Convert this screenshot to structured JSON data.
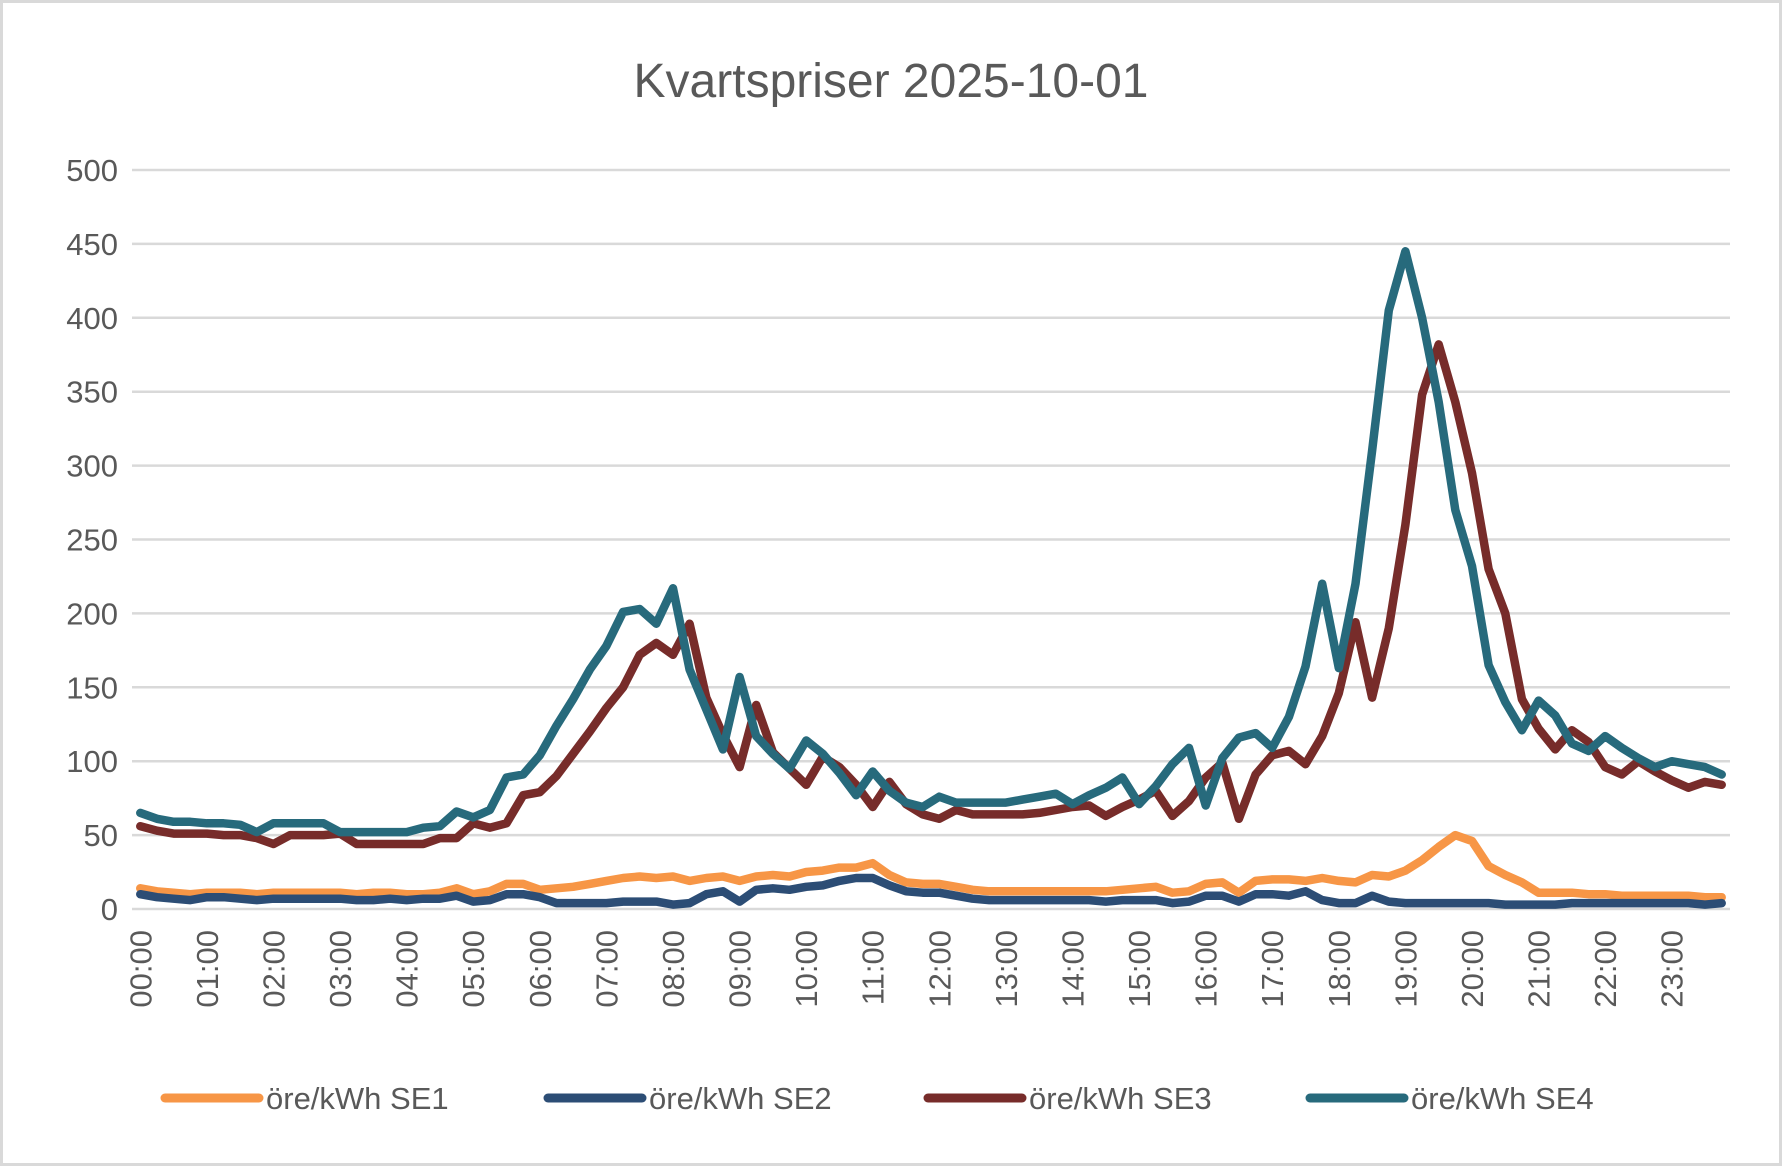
{
  "chart_data": {
    "type": "line",
    "title": "Kvartspriser 2025-10-01",
    "xlabel": "",
    "ylabel": "",
    "ylim": [
      0,
      500
    ],
    "yticks": [
      "0",
      "50",
      "100",
      "150",
      "200",
      "250",
      "300",
      "350",
      "400",
      "450",
      "500"
    ],
    "ytick_values": [
      0,
      50,
      100,
      150,
      200,
      250,
      300,
      350,
      400,
      450,
      500
    ],
    "xtick_labels": [
      "00:00",
      "01:00",
      "02:00",
      "03:00",
      "04:00",
      "05:00",
      "06:00",
      "07:00",
      "08:00",
      "09:00",
      "10:00",
      "11:00",
      "12:00",
      "13:00",
      "14:00",
      "15:00",
      "16:00",
      "17:00",
      "18:00",
      "19:00",
      "20:00",
      "21:00",
      "22:00",
      "23:00"
    ],
    "points_per_label": 4,
    "grid": true,
    "legend": "bottom",
    "series": [
      {
        "name": "öre/kWh SE1",
        "color": "#F79646",
        "values": [
          14,
          12,
          11,
          10,
          11,
          11,
          11,
          10,
          11,
          11,
          11,
          11,
          11,
          10,
          11,
          11,
          10,
          10,
          11,
          14,
          10,
          12,
          17,
          17,
          13,
          14,
          15,
          17,
          19,
          21,
          22,
          21,
          22,
          19,
          21,
          22,
          19,
          22,
          23,
          22,
          25,
          26,
          28,
          28,
          31,
          23,
          18,
          17,
          17,
          15,
          13,
          12,
          12,
          12,
          12,
          12,
          12,
          12,
          12,
          13,
          14,
          15,
          11,
          12,
          17,
          18,
          11,
          19,
          20,
          20,
          19,
          21,
          19,
          18,
          23,
          22,
          26,
          33,
          42,
          50,
          46,
          29,
          23,
          18,
          11,
          11,
          11,
          10,
          10,
          9,
          9,
          9,
          9,
          9,
          8,
          8
        ]
      },
      {
        "name": "öre/kWh SE2",
        "color": "#2C4D75",
        "values": [
          10,
          8,
          7,
          6,
          8,
          8,
          7,
          6,
          7,
          7,
          7,
          7,
          7,
          6,
          6,
          7,
          6,
          7,
          7,
          9,
          5,
          6,
          10,
          10,
          8,
          4,
          4,
          4,
          4,
          5,
          5,
          5,
          3,
          4,
          10,
          12,
          5,
          13,
          14,
          13,
          15,
          16,
          19,
          21,
          21,
          16,
          12,
          11,
          11,
          9,
          7,
          6,
          6,
          6,
          6,
          6,
          6,
          6,
          5,
          6,
          6,
          6,
          4,
          5,
          9,
          9,
          5,
          10,
          10,
          9,
          12,
          6,
          4,
          4,
          9,
          5,
          4,
          4,
          4,
          4,
          4,
          4,
          3,
          3,
          3,
          3,
          4,
          4,
          4,
          4,
          4,
          4,
          4,
          4,
          3,
          4
        ]
      },
      {
        "name": "öre/kWh SE3",
        "color": "#772C2A",
        "values": [
          56,
          53,
          51,
          51,
          51,
          50,
          50,
          48,
          44,
          50,
          50,
          50,
          51,
          44,
          44,
          44,
          44,
          44,
          48,
          48,
          58,
          55,
          58,
          77,
          79,
          90,
          105,
          120,
          136,
          150,
          172,
          180,
          172,
          193,
          143,
          118,
          96,
          138,
          106,
          95,
          84,
          103,
          96,
          84,
          69,
          86,
          71,
          64,
          61,
          67,
          64,
          64,
          64,
          64,
          65,
          67,
          69,
          70,
          63,
          69,
          74,
          80,
          63,
          73,
          89,
          99,
          61,
          91,
          104,
          107,
          98,
          117,
          146,
          194,
          143,
          190,
          260,
          348,
          382,
          343,
          295,
          230,
          200,
          142,
          122,
          108,
          121,
          113,
          96,
          91,
          100,
          93,
          87,
          82,
          86,
          84
        ]
      },
      {
        "name": "öre/kWh SE4",
        "color": "#276A7C",
        "values": [
          65,
          61,
          59,
          59,
          58,
          58,
          57,
          52,
          58,
          58,
          58,
          58,
          52,
          52,
          52,
          52,
          52,
          55,
          56,
          66,
          62,
          67,
          89,
          91,
          104,
          124,
          142,
          162,
          178,
          201,
          203,
          193,
          217,
          162,
          135,
          108,
          157,
          117,
          105,
          95,
          114,
          105,
          92,
          77,
          93,
          80,
          72,
          69,
          76,
          72,
          72,
          72,
          72,
          74,
          76,
          78,
          71,
          77,
          82,
          89,
          71,
          83,
          98,
          109,
          70,
          102,
          116,
          119,
          109,
          130,
          164,
          220,
          163,
          220,
          310,
          405,
          445,
          400,
          343,
          270,
          232,
          165,
          140,
          121,
          141,
          131,
          112,
          107,
          117,
          109,
          102,
          96,
          100,
          98,
          96,
          91
        ]
      }
    ]
  }
}
